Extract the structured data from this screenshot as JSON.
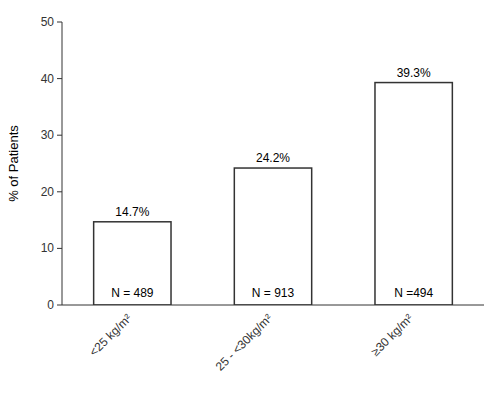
{
  "chart_data": {
    "type": "bar",
    "categories": [
      "<25 kg/m²",
      "25 - <30kg/m²",
      "≥30 kg/m²"
    ],
    "values": [
      14.7,
      24.2,
      39.3
    ],
    "value_labels": [
      "14.7%",
      "24.2%",
      "39.3%"
    ],
    "data_labels": true,
    "annotations": [
      "N = 489",
      "N = 913",
      "N =494"
    ],
    "ylabel": "% of Patients",
    "ylim": [
      0,
      50
    ],
    "yticks": [
      0,
      10,
      20,
      30,
      40,
      50
    ],
    "color": "#ffffff",
    "grid": false
  }
}
